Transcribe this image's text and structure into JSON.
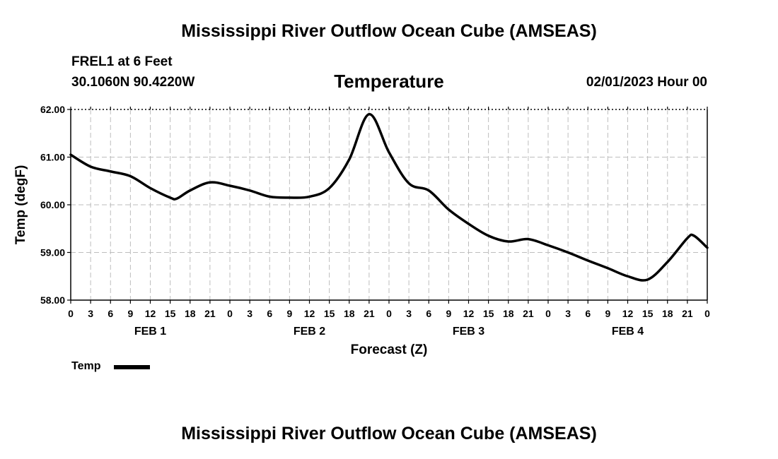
{
  "header": {
    "title": "Mississippi River Outflow Ocean Cube (AMSEAS)",
    "station": "FREL1 at 6 Feet",
    "coords": "30.1060N  90.4220W",
    "variable": "Temperature",
    "datetime": "02/01/2023 Hour 00"
  },
  "footer": {
    "title": "Mississippi River Outflow Ocean Cube (AMSEAS)"
  },
  "legend": {
    "label": "Temp"
  },
  "chart_data": {
    "type": "line",
    "title": "Temperature",
    "xlabel": "Forecast (Z)",
    "ylabel": "Temp (degF)",
    "ylim": [
      58,
      62
    ],
    "xlim": [
      0,
      96
    ],
    "y_ticks": [
      "58.00",
      "59.00",
      "60.00",
      "61.00",
      "62.00"
    ],
    "x_tick_labels": [
      "0",
      "3",
      "6",
      "9",
      "12",
      "15",
      "18",
      "21",
      "0",
      "3",
      "6",
      "9",
      "12",
      "15",
      "18",
      "21",
      "0",
      "3",
      "6",
      "9",
      "12",
      "15",
      "18",
      "21",
      "0",
      "3",
      "6",
      "9",
      "12",
      "15",
      "18",
      "21",
      "0"
    ],
    "day_labels": [
      "FEB 1",
      "FEB 2",
      "FEB 3",
      "FEB 4"
    ],
    "grid": true,
    "series": [
      {
        "name": "Temp",
        "x": [
          0,
          3,
          6,
          9,
          12,
          15,
          16,
          18,
          21,
          24,
          27,
          30,
          33,
          36,
          39,
          42,
          45,
          48,
          51,
          54,
          57,
          60,
          63,
          66,
          69,
          72,
          75,
          78,
          81,
          84,
          87,
          90,
          93,
          94,
          96
        ],
        "values": [
          61.05,
          60.8,
          60.7,
          60.6,
          60.35,
          60.15,
          60.13,
          60.3,
          60.47,
          60.4,
          60.3,
          60.17,
          60.15,
          60.17,
          60.35,
          60.95,
          61.9,
          61.1,
          60.45,
          60.3,
          59.9,
          59.6,
          59.35,
          59.23,
          59.28,
          59.15,
          59.0,
          58.83,
          58.67,
          58.5,
          58.43,
          58.8,
          59.3,
          59.35,
          59.1
        ]
      }
    ]
  }
}
